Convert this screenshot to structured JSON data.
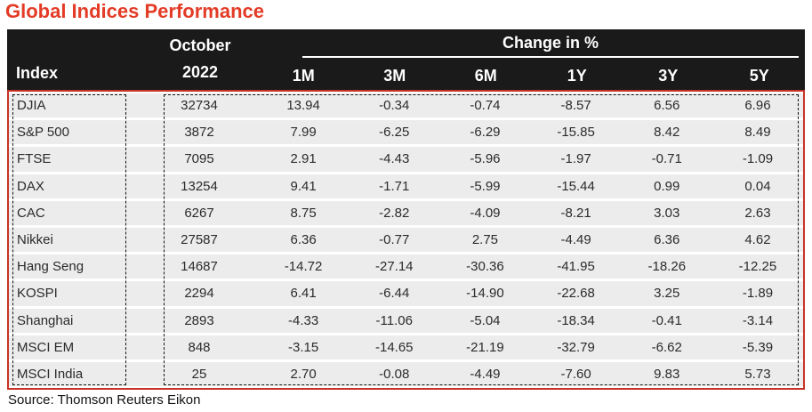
{
  "title": "Global Indices Performance",
  "source": "Source: Thomson Reuters Eikon",
  "colors": {
    "title_red": "#E33B26",
    "header_bg": "#1A1A1A",
    "header_text": "#ffffff",
    "row_bg": "#ECECEC",
    "body_border_red": "#C83226",
    "dash_border": "#141414"
  },
  "header": {
    "index_label": "Index",
    "month_line1": "October",
    "month_line2": "2022",
    "group_label": "Change in %",
    "periods": [
      "1M",
      "3M",
      "6M",
      "1Y",
      "3Y",
      "5Y"
    ]
  },
  "rows": [
    {
      "name": "DJIA",
      "oct": "32734",
      "changes": [
        "13.94",
        "-0.34",
        "-0.74",
        "-8.57",
        "6.56",
        "6.96"
      ]
    },
    {
      "name": "S&P 500",
      "oct": "3872",
      "changes": [
        "7.99",
        "-6.25",
        "-6.29",
        "-15.85",
        "8.42",
        "8.49"
      ]
    },
    {
      "name": "FTSE",
      "oct": "7095",
      "changes": [
        "2.91",
        "-4.43",
        "-5.96",
        "-1.97",
        "-0.71",
        "-1.09"
      ]
    },
    {
      "name": "DAX",
      "oct": "13254",
      "changes": [
        "9.41",
        "-1.71",
        "-5.99",
        "-15.44",
        "0.99",
        "0.04"
      ]
    },
    {
      "name": "CAC",
      "oct": "6267",
      "changes": [
        "8.75",
        "-2.82",
        "-4.09",
        "-8.21",
        "3.03",
        "2.63"
      ]
    },
    {
      "name": "Nikkei",
      "oct": "27587",
      "changes": [
        "6.36",
        "-0.77",
        "2.75",
        "-4.49",
        "6.36",
        "4.62"
      ]
    },
    {
      "name": "Hang Seng",
      "oct": "14687",
      "changes": [
        "-14.72",
        "-27.14",
        "-30.36",
        "-41.95",
        "-18.26",
        "-12.25"
      ]
    },
    {
      "name": "KOSPI",
      "oct": "2294",
      "changes": [
        "6.41",
        "-6.44",
        "-14.90",
        "-22.68",
        "3.25",
        "-1.89"
      ]
    },
    {
      "name": "Shanghai",
      "oct": "2893",
      "changes": [
        "-4.33",
        "-11.06",
        "-5.04",
        "-18.34",
        "-0.41",
        "-3.14"
      ]
    },
    {
      "name": "MSCI EM",
      "oct": "848",
      "changes": [
        "-3.15",
        "-14.65",
        "-21.19",
        "-32.79",
        "-6.62",
        "-5.39"
      ]
    },
    {
      "name": "MSCI India",
      "oct": "25",
      "changes": [
        "2.70",
        "-0.08",
        "-4.49",
        "-7.60",
        "9.83",
        "5.73"
      ]
    }
  ],
  "chart_data": {
    "type": "table",
    "title": "Global Indices Performance",
    "columns": [
      "Index",
      "October 2022",
      "1M",
      "3M",
      "6M",
      "1Y",
      "3Y",
      "5Y"
    ],
    "units": "Change in %",
    "rows": [
      [
        "DJIA",
        32734,
        13.94,
        -0.34,
        -0.74,
        -8.57,
        6.56,
        6.96
      ],
      [
        "S&P 500",
        3872,
        7.99,
        -6.25,
        -6.29,
        -15.85,
        8.42,
        8.49
      ],
      [
        "FTSE",
        7095,
        2.91,
        -4.43,
        -5.96,
        -1.97,
        -0.71,
        -1.09
      ],
      [
        "DAX",
        13254,
        9.41,
        -1.71,
        -5.99,
        -15.44,
        0.99,
        0.04
      ],
      [
        "CAC",
        6267,
        8.75,
        -2.82,
        -4.09,
        -8.21,
        3.03,
        2.63
      ],
      [
        "Nikkei",
        27587,
        6.36,
        -0.77,
        2.75,
        -4.49,
        6.36,
        4.62
      ],
      [
        "Hang Seng",
        14687,
        -14.72,
        -27.14,
        -30.36,
        -41.95,
        -18.26,
        -12.25
      ],
      [
        "KOSPI",
        2294,
        6.41,
        -6.44,
        -14.9,
        -22.68,
        3.25,
        -1.89
      ],
      [
        "Shanghai",
        2893,
        -4.33,
        -11.06,
        -5.04,
        -18.34,
        -0.41,
        -3.14
      ],
      [
        "MSCI EM",
        848,
        -3.15,
        -14.65,
        -21.19,
        -32.79,
        -6.62,
        -5.39
      ],
      [
        "MSCI India",
        25,
        2.7,
        -0.08,
        -4.49,
        -7.6,
        9.83,
        5.73
      ]
    ],
    "source": "Source: Thomson Reuters Eikon"
  }
}
